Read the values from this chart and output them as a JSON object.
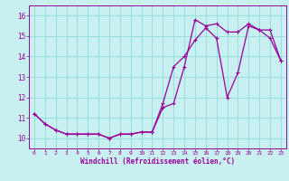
{
  "title": "",
  "xlabel": "Windchill (Refroidissement éolien,°C)",
  "background_color": "#c8f0f0",
  "line_color": "#990099",
  "grid_color": "#99dddd",
  "xlim": [
    -0.5,
    23.5
  ],
  "ylim": [
    9.5,
    16.5
  ],
  "yticks": [
    10,
    11,
    12,
    13,
    14,
    15,
    16
  ],
  "xticks": [
    0,
    1,
    2,
    3,
    4,
    5,
    6,
    7,
    8,
    9,
    10,
    11,
    12,
    13,
    14,
    15,
    16,
    17,
    18,
    19,
    20,
    21,
    22,
    23
  ],
  "line1_x": [
    0,
    1,
    2,
    3,
    4,
    5,
    6,
    7,
    8,
    9,
    10,
    11,
    12,
    13,
    14,
    15,
    16,
    17,
    18,
    19,
    20,
    21,
    22,
    23
  ],
  "line1_y": [
    11.2,
    10.7,
    10.4,
    10.2,
    10.2,
    10.2,
    10.2,
    10.0,
    10.2,
    10.2,
    10.3,
    10.3,
    11.7,
    13.5,
    14.0,
    14.8,
    15.4,
    14.9,
    12.0,
    13.2,
    15.5,
    15.3,
    15.3,
    13.8
  ],
  "line2_x": [
    0,
    1,
    2,
    3,
    4,
    5,
    6,
    7,
    8,
    9,
    10,
    11,
    12,
    13,
    14,
    15,
    16,
    17,
    18,
    19,
    20,
    21,
    22,
    23
  ],
  "line2_y": [
    11.2,
    10.7,
    10.4,
    10.2,
    10.2,
    10.2,
    10.2,
    10.0,
    10.2,
    10.2,
    10.3,
    10.3,
    11.5,
    11.7,
    13.5,
    15.8,
    15.5,
    15.6,
    15.2,
    15.2,
    15.6,
    15.3,
    14.9,
    13.8
  ],
  "figsize": [
    3.2,
    2.0
  ],
  "dpi": 100
}
